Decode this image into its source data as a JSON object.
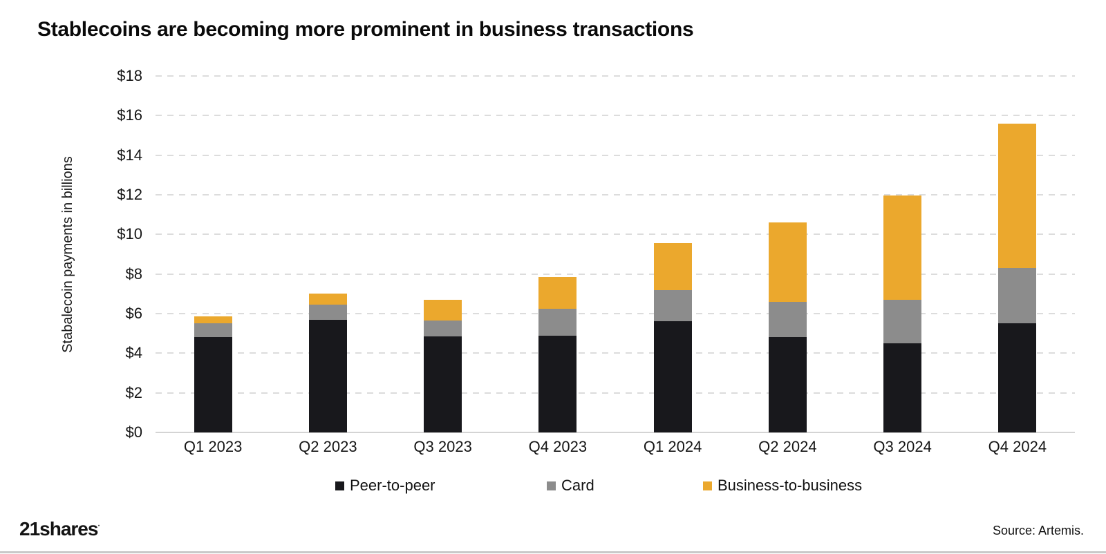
{
  "page": {
    "title": "Stablecoins are becoming more prominent in business transactions",
    "brand": "21shares",
    "brand_mark": "·",
    "source": "Source: Artemis."
  },
  "chart_data": {
    "type": "bar",
    "stacked": true,
    "title": "Stablecoins are becoming more prominent in business transactions",
    "xlabel": "",
    "ylabel": "Stabalecoin payments in billions",
    "ylim": [
      0,
      18
    ],
    "ytick_step": 2,
    "ytick_labels": [
      "$0",
      "$2",
      "$4",
      "$6",
      "$8",
      "$10",
      "$12",
      "$14",
      "$16",
      "$18"
    ],
    "grid": "horizontal-dashed",
    "legend_position": "bottom",
    "categories": [
      "Q1 2023",
      "Q2 2023",
      "Q3 2023",
      "Q4 2023",
      "Q1 2024",
      "Q2 2024",
      "Q3 2024",
      "Q4 2024"
    ],
    "series": [
      {
        "name": "Peer-to-peer",
        "color": "#18181c",
        "values": [
          4.8,
          5.7,
          4.85,
          4.9,
          5.6,
          4.8,
          4.5,
          5.5
        ]
      },
      {
        "name": "Card",
        "color": "#8c8c8c",
        "values": [
          0.7,
          0.75,
          0.8,
          1.35,
          1.6,
          1.8,
          2.2,
          2.8
        ]
      },
      {
        "name": "Business-to-business",
        "color": "#eba82d",
        "values": [
          0.35,
          0.55,
          1.05,
          1.6,
          2.35,
          4.0,
          5.25,
          7.3
        ]
      }
    ],
    "totals": [
      5.85,
      7.0,
      6.7,
      7.85,
      9.55,
      10.6,
      11.95,
      15.6
    ],
    "units": "USD billions"
  }
}
